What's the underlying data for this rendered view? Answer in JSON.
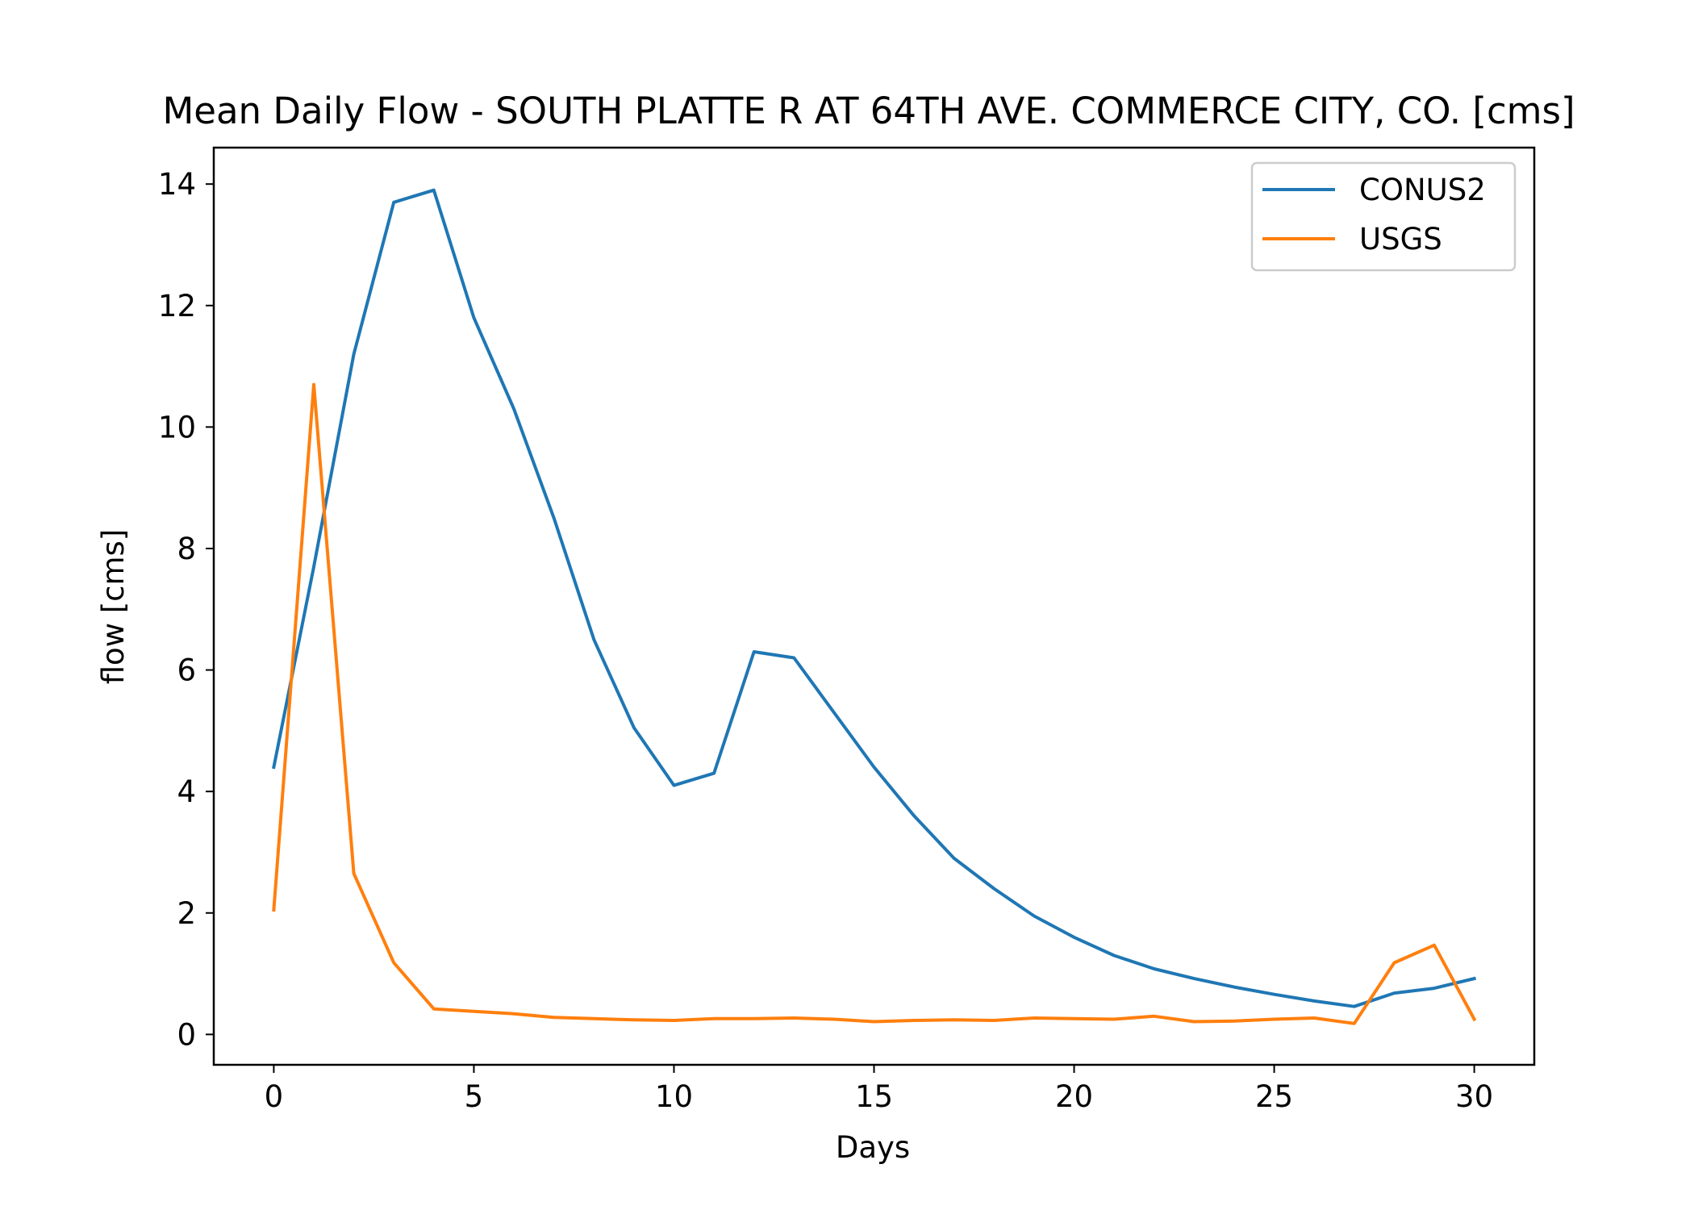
{
  "chart_data": {
    "type": "line",
    "title": "Mean Daily Flow - SOUTH PLATTE R AT 64TH AVE. COMMERCE CITY, CO. [cms]",
    "xlabel": "Days",
    "ylabel": "flow [cms]",
    "xlim": [
      -1.5,
      31.5
    ],
    "ylim": [
      -0.5,
      14.6
    ],
    "xticks": [
      0,
      5,
      10,
      15,
      20,
      25,
      30
    ],
    "yticks": [
      0,
      2,
      4,
      6,
      8,
      10,
      12,
      14
    ],
    "grid": false,
    "legend_position": "top-right",
    "x": [
      0,
      1,
      2,
      3,
      4,
      5,
      6,
      7,
      8,
      9,
      10,
      11,
      12,
      13,
      14,
      15,
      16,
      17,
      18,
      19,
      20,
      21,
      22,
      23,
      24,
      25,
      26,
      27,
      28,
      29,
      30
    ],
    "series": [
      {
        "name": "CONUS2",
        "color": "#1f77b4",
        "values": [
          4.4,
          7.7,
          11.2,
          13.7,
          13.9,
          11.8,
          10.3,
          8.5,
          6.5,
          5.05,
          4.1,
          4.3,
          6.3,
          6.2,
          5.3,
          4.4,
          3.6,
          2.9,
          2.4,
          1.95,
          1.6,
          1.3,
          1.08,
          0.92,
          0.78,
          0.66,
          0.55,
          0.46,
          0.68,
          0.76,
          0.92
        ]
      },
      {
        "name": "USGS",
        "color": "#ff7f0e",
        "values": [
          2.05,
          10.7,
          2.65,
          1.18,
          0.42,
          0.38,
          0.34,
          0.28,
          0.26,
          0.24,
          0.23,
          0.26,
          0.26,
          0.27,
          0.25,
          0.21,
          0.23,
          0.24,
          0.23,
          0.27,
          0.26,
          0.25,
          0.3,
          0.21,
          0.22,
          0.25,
          0.27,
          0.18,
          1.18,
          1.47,
          0.25
        ]
      }
    ]
  }
}
